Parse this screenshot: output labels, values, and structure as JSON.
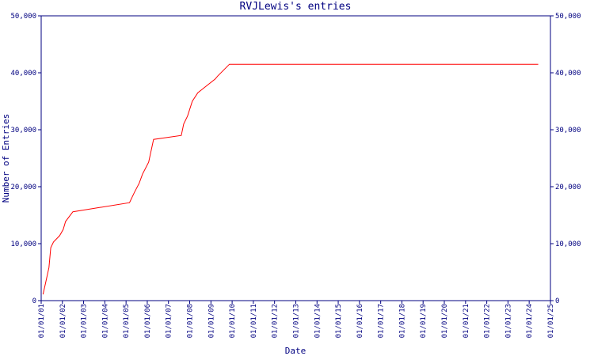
{
  "chart_data": {
    "type": "line",
    "title": "RVJLewis's entries",
    "xlabel": "Date",
    "ylabel": "Number of Entries",
    "x": [
      "2001-02-01",
      "2001-03-15",
      "2001-05-15",
      "2001-06-15",
      "2001-08-01",
      "2001-11-15",
      "2002-01-15",
      "2002-02-25",
      "2002-07-01",
      "2005-03-01",
      "2005-05-25",
      "2005-08-15",
      "2005-10-10",
      "2006-01-25",
      "2006-04-20",
      "2007-08-10",
      "2007-09-20",
      "2007-11-25",
      "2008-02-15",
      "2008-05-20",
      "2009-03-15",
      "2009-04-25",
      "2009-11-15",
      "2024-06-05"
    ],
    "values": [
      1100,
      3000,
      5800,
      9300,
      10300,
      11400,
      12500,
      13900,
      15600,
      17200,
      19000,
      20600,
      22200,
      24300,
      28300,
      29000,
      31000,
      32400,
      35000,
      36500,
      38900,
      39400,
      41500,
      41500
    ],
    "color": "#ff0000",
    "axis_color": "#000080",
    "xlim": [
      "2001-01-01",
      "2025-01-01"
    ],
    "xticks": [
      {
        "value": "2001-01-01",
        "label": "01/01/01"
      },
      {
        "value": "2002-01-01",
        "label": "01/01/02"
      },
      {
        "value": "2003-01-01",
        "label": "01/01/03"
      },
      {
        "value": "2004-01-01",
        "label": "01/01/04"
      },
      {
        "value": "2005-01-01",
        "label": "01/01/05"
      },
      {
        "value": "2006-01-01",
        "label": "01/01/06"
      },
      {
        "value": "2007-01-01",
        "label": "01/01/07"
      },
      {
        "value": "2008-01-01",
        "label": "01/01/08"
      },
      {
        "value": "2009-01-01",
        "label": "01/01/09"
      },
      {
        "value": "2010-01-01",
        "label": "01/01/10"
      },
      {
        "value": "2011-01-01",
        "label": "01/01/11"
      },
      {
        "value": "2012-01-01",
        "label": "01/01/12"
      },
      {
        "value": "2013-01-01",
        "label": "01/01/13"
      },
      {
        "value": "2014-01-01",
        "label": "01/01/14"
      },
      {
        "value": "2015-01-01",
        "label": "01/01/15"
      },
      {
        "value": "2016-01-01",
        "label": "01/01/16"
      },
      {
        "value": "2017-01-01",
        "label": "01/01/17"
      },
      {
        "value": "2018-01-01",
        "label": "01/01/18"
      },
      {
        "value": "2019-01-01",
        "label": "01/01/19"
      },
      {
        "value": "2020-01-01",
        "label": "01/01/20"
      },
      {
        "value": "2021-01-01",
        "label": "01/01/21"
      },
      {
        "value": "2022-01-01",
        "label": "01/01/22"
      },
      {
        "value": "2023-01-01",
        "label": "01/01/23"
      },
      {
        "value": "2024-01-01",
        "label": "01/01/24"
      },
      {
        "value": "2025-01-01",
        "label": "01/01/25"
      }
    ],
    "ylim": [
      0,
      50000
    ],
    "yticks": [
      0,
      {
        "value": 10000,
        "label": "10,000"
      },
      {
        "value": 20000,
        "label": "20,000"
      },
      {
        "value": 30000,
        "label": "30,000"
      },
      {
        "value": 40000,
        "label": "40,000"
      },
      {
        "value": 50000,
        "label": "50,000"
      }
    ],
    "y2lim": [
      0,
      50000
    ],
    "y2ticks": [
      0,
      {
        "value": 10000,
        "label": "10,000"
      },
      {
        "value": 20000,
        "label": "20,000"
      },
      {
        "value": 30000,
        "label": "30,000"
      },
      {
        "value": 40000,
        "label": "40,000"
      },
      {
        "value": 50000,
        "label": "50,000"
      }
    ]
  }
}
